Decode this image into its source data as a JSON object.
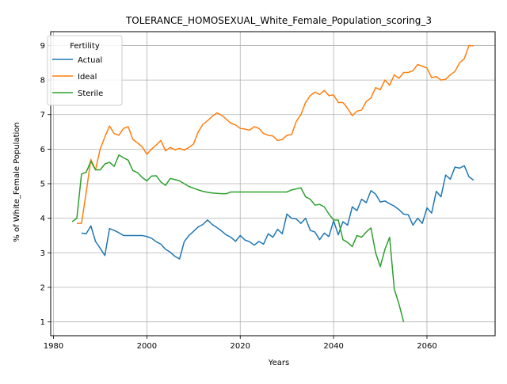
{
  "chart_data": {
    "type": "line",
    "title": "TOLERANCE_HOMOSEXUAL_White_Female_Population_scoring_3",
    "xlabel": "Years",
    "ylabel": "% of White_Female Population",
    "xlim": [
      1979.4,
      2074.6
    ],
    "ylim": [
      0.6,
      9.4
    ],
    "xticks": [
      1980,
      2000,
      2020,
      2040,
      2060
    ],
    "yticks": [
      1,
      2,
      3,
      4,
      5,
      6,
      7,
      8,
      9
    ],
    "grid": true,
    "legend": {
      "title": "Fertility",
      "placement": "top-left"
    },
    "series": [
      {
        "name": "Actual",
        "color": "#1f77b4",
        "x": [
          1986,
          1987,
          1988,
          1989,
          1990,
          1991,
          1992,
          1993,
          1994,
          1995,
          1996,
          1997,
          1998,
          1999,
          2000,
          2001,
          2002,
          2003,
          2004,
          2005,
          2006,
          2007,
          2008,
          2009,
          2010,
          2011,
          2012,
          2013,
          2014,
          2015,
          2016,
          2017,
          2018,
          2019,
          2020,
          2021,
          2022,
          2023,
          2024,
          2025,
          2026,
          2027,
          2028,
          2029,
          2030,
          2031,
          2032,
          2033,
          2034,
          2035,
          2036,
          2037,
          2038,
          2039,
          2040,
          2041,
          2042,
          2043,
          2044,
          2045,
          2046,
          2047,
          2048,
          2049,
          2050,
          2051,
          2052,
          2053,
          2054,
          2055,
          2056,
          2057,
          2058,
          2059,
          2060,
          2061,
          2062,
          2063,
          2064,
          2065,
          2066,
          2067,
          2068,
          2069,
          2070
        ],
        "y": [
          3.57,
          3.55,
          3.78,
          3.33,
          3.13,
          2.92,
          3.7,
          3.65,
          3.58,
          3.5,
          3.5,
          3.5,
          3.5,
          3.5,
          3.47,
          3.42,
          3.32,
          3.25,
          3.1,
          3.02,
          2.9,
          2.82,
          3.32,
          3.5,
          3.62,
          3.75,
          3.82,
          3.95,
          3.82,
          3.73,
          3.63,
          3.52,
          3.45,
          3.33,
          3.5,
          3.37,
          3.32,
          3.22,
          3.33,
          3.25,
          3.55,
          3.45,
          3.68,
          3.55,
          4.12,
          4.0,
          3.98,
          3.85,
          4.0,
          3.65,
          3.6,
          3.38,
          3.57,
          3.47,
          3.93,
          3.52,
          3.9,
          3.8,
          4.33,
          4.22,
          4.55,
          4.45,
          4.8,
          4.7,
          4.47,
          4.5,
          4.42,
          4.35,
          4.25,
          4.12,
          4.1,
          3.8,
          4.0,
          3.85,
          4.3,
          4.15,
          4.78,
          4.62,
          5.25,
          5.13,
          5.48,
          5.45,
          5.52,
          5.2,
          5.1
        ]
      },
      {
        "name": "Ideal",
        "color": "#ff7f0e",
        "x": [
          1985,
          1986,
          1987,
          1988,
          1989,
          1990,
          1991,
          1992,
          1993,
          1994,
          1995,
          1996,
          1997,
          1998,
          1999,
          2000,
          2001,
          2002,
          2003,
          2004,
          2005,
          2006,
          2007,
          2008,
          2009,
          2010,
          2011,
          2012,
          2013,
          2014,
          2015,
          2016,
          2017,
          2018,
          2019,
          2020,
          2021,
          2022,
          2023,
          2024,
          2025,
          2026,
          2027,
          2028,
          2029,
          2030,
          2031,
          2032,
          2033,
          2034,
          2035,
          2036,
          2037,
          2038,
          2039,
          2040,
          2041,
          2042,
          2043,
          2044,
          2045,
          2046,
          2047,
          2048,
          2049,
          2050,
          2051,
          2052,
          2053,
          2054,
          2055,
          2056,
          2057,
          2058,
          2059,
          2060,
          2061,
          2062,
          2063,
          2064,
          2065,
          2066,
          2067,
          2068,
          2069,
          2070
        ],
        "y": [
          3.85,
          3.85,
          4.75,
          5.7,
          5.4,
          6.0,
          6.35,
          6.67,
          6.45,
          6.4,
          6.6,
          6.65,
          6.28,
          6.18,
          6.07,
          5.85,
          6.0,
          6.12,
          6.25,
          5.95,
          6.05,
          5.98,
          6.02,
          5.97,
          6.05,
          6.15,
          6.5,
          6.72,
          6.82,
          6.95,
          7.05,
          6.98,
          6.87,
          6.75,
          6.7,
          6.6,
          6.58,
          6.55,
          6.65,
          6.6,
          6.45,
          6.4,
          6.38,
          6.25,
          6.28,
          6.4,
          6.42,
          6.8,
          7.0,
          7.35,
          7.55,
          7.65,
          7.58,
          7.7,
          7.55,
          7.57,
          7.35,
          7.35,
          7.18,
          6.97,
          7.1,
          7.13,
          7.38,
          7.48,
          7.78,
          7.72,
          8.0,
          7.85,
          8.15,
          8.05,
          8.22,
          8.22,
          8.27,
          8.45,
          8.4,
          8.35,
          8.07,
          8.1,
          8.0,
          8.02,
          8.15,
          8.25,
          8.5,
          8.62,
          9.0,
          8.99
        ]
      },
      {
        "name": "Sterile",
        "color": "#2ca02c",
        "x": [
          1984,
          1985,
          1986,
          1987,
          1988,
          1989,
          1990,
          1991,
          1992,
          1993,
          1994,
          1995,
          1996,
          1997,
          1998,
          1999,
          2000,
          2001,
          2002,
          2003,
          2004,
          2005,
          2006,
          2007,
          2008,
          2009,
          2010,
          2011,
          2012,
          2013,
          2014,
          2015,
          2016,
          2017,
          2018,
          2019,
          2020,
          2021,
          2022,
          2023,
          2024,
          2025,
          2026,
          2027,
          2028,
          2029,
          2030,
          2031,
          2032,
          2033,
          2034,
          2035,
          2036,
          2037,
          2038,
          2039,
          2040,
          2041,
          2042,
          2043,
          2044,
          2045,
          2046,
          2047,
          2048,
          2049,
          2050,
          2051,
          2052,
          2053,
          2054,
          2055,
          2056
        ],
        "y": [
          3.9,
          4.0,
          5.28,
          5.33,
          5.65,
          5.4,
          5.4,
          5.57,
          5.62,
          5.5,
          5.83,
          5.75,
          5.68,
          5.38,
          5.32,
          5.18,
          5.08,
          5.22,
          5.23,
          5.05,
          4.95,
          5.15,
          5.12,
          5.08,
          5.0,
          4.92,
          4.87,
          4.82,
          4.78,
          4.75,
          4.73,
          4.72,
          4.71,
          4.71,
          4.76,
          4.76,
          4.76,
          4.76,
          4.76,
          4.76,
          4.76,
          4.76,
          4.76,
          4.76,
          4.76,
          4.76,
          4.76,
          4.82,
          4.85,
          4.88,
          4.62,
          4.55,
          4.38,
          4.4,
          4.33,
          4.12,
          3.95,
          3.95,
          3.38,
          3.3,
          3.18,
          3.5,
          3.45,
          3.6,
          3.72,
          3.0,
          2.6,
          3.1,
          3.45,
          1.95,
          1.52,
          1.0,
          null
        ]
      }
    ]
  }
}
